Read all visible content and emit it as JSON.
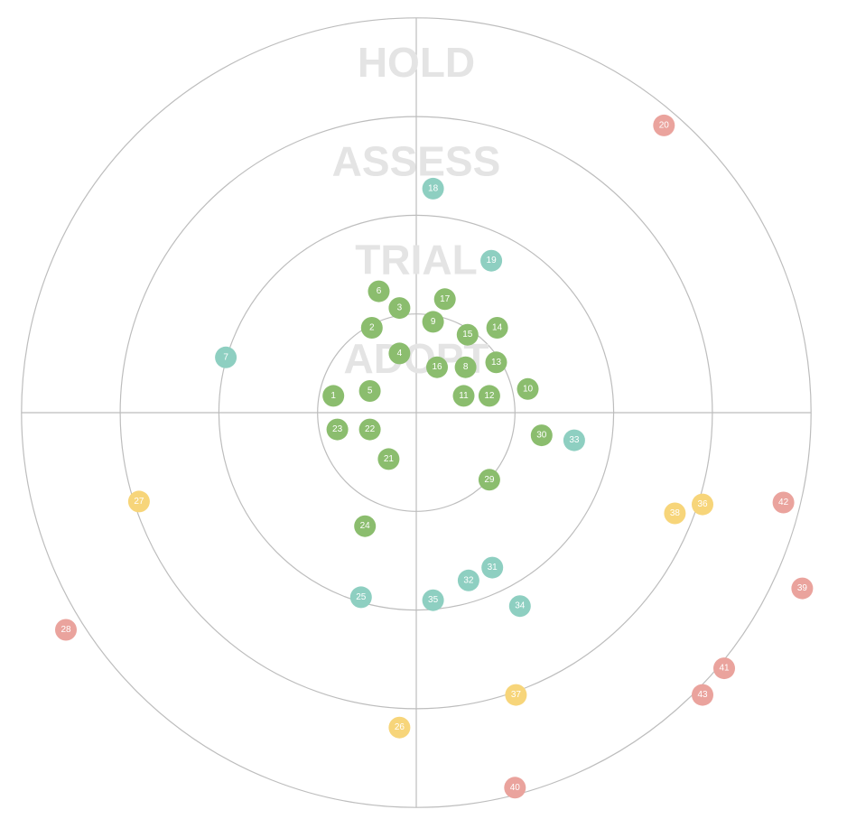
{
  "chart_data": {
    "type": "scatter",
    "title": "",
    "rings": [
      {
        "name": "ADOPT"
      },
      {
        "name": "TRIAL"
      },
      {
        "name": "ASSESS"
      },
      {
        "name": "HOLD"
      }
    ],
    "ring_max_radius": 4,
    "quadrant_colors": {
      "ADOPT": "#8bbd6e",
      "TRIAL": "#8ecfc1",
      "ASSESS": "#f7d57a",
      "HOLD": "#eaa39d"
    },
    "blips": [
      {
        "id": "1",
        "x": -0.84,
        "y": 0.17,
        "ring": "ADOPT"
      },
      {
        "id": "2",
        "x": -0.45,
        "y": 0.86,
        "ring": "ADOPT"
      },
      {
        "id": "3",
        "x": -0.17,
        "y": 1.06,
        "ring": "ADOPT"
      },
      {
        "id": "4",
        "x": -0.17,
        "y": 0.6,
        "ring": "ADOPT"
      },
      {
        "id": "5",
        "x": -0.47,
        "y": 0.22,
        "ring": "ADOPT"
      },
      {
        "id": "6",
        "x": -0.38,
        "y": 1.23,
        "ring": "ADOPT"
      },
      {
        "id": "7",
        "x": -1.93,
        "y": 0.56,
        "ring": "TRIAL"
      },
      {
        "id": "8",
        "x": 0.5,
        "y": 0.46,
        "ring": "ADOPT"
      },
      {
        "id": "9",
        "x": 0.17,
        "y": 0.92,
        "ring": "ADOPT"
      },
      {
        "id": "10",
        "x": 1.13,
        "y": 0.24,
        "ring": "ADOPT"
      },
      {
        "id": "11",
        "x": 0.48,
        "y": 0.17,
        "ring": "ADOPT"
      },
      {
        "id": "12",
        "x": 0.74,
        "y": 0.17,
        "ring": "ADOPT"
      },
      {
        "id": "13",
        "x": 0.81,
        "y": 0.51,
        "ring": "ADOPT"
      },
      {
        "id": "14",
        "x": 0.82,
        "y": 0.86,
        "ring": "ADOPT"
      },
      {
        "id": "15",
        "x": 0.52,
        "y": 0.79,
        "ring": "ADOPT"
      },
      {
        "id": "16",
        "x": 0.21,
        "y": 0.46,
        "ring": "ADOPT"
      },
      {
        "id": "17",
        "x": 0.29,
        "y": 1.15,
        "ring": "ADOPT"
      },
      {
        "id": "18",
        "x": 0.17,
        "y": 2.27,
        "ring": "TRIAL"
      },
      {
        "id": "19",
        "x": 0.76,
        "y": 1.54,
        "ring": "TRIAL"
      },
      {
        "id": "20",
        "x": 2.51,
        "y": 2.91,
        "ring": "HOLD"
      },
      {
        "id": "21",
        "x": -0.28,
        "y": -0.47,
        "ring": "ADOPT"
      },
      {
        "id": "22",
        "x": -0.47,
        "y": -0.17,
        "ring": "ADOPT"
      },
      {
        "id": "23",
        "x": -0.8,
        "y": -0.17,
        "ring": "ADOPT"
      },
      {
        "id": "24",
        "x": -0.52,
        "y": -1.15,
        "ring": "ADOPT"
      },
      {
        "id": "25",
        "x": -0.56,
        "y": -1.87,
        "ring": "TRIAL"
      },
      {
        "id": "26",
        "x": -0.17,
        "y": -3.19,
        "ring": "ASSESS"
      },
      {
        "id": "27",
        "x": -2.81,
        "y": -0.9,
        "ring": "ASSESS"
      },
      {
        "id": "28",
        "x": -3.55,
        "y": -2.2,
        "ring": "HOLD"
      },
      {
        "id": "29",
        "x": 0.74,
        "y": -0.68,
        "ring": "ADOPT"
      },
      {
        "id": "30",
        "x": 1.27,
        "y": -0.23,
        "ring": "ADOPT"
      },
      {
        "id": "31",
        "x": 0.77,
        "y": -1.57,
        "ring": "TRIAL"
      },
      {
        "id": "32",
        "x": 0.53,
        "y": -1.7,
        "ring": "TRIAL"
      },
      {
        "id": "33",
        "x": 1.6,
        "y": -0.28,
        "ring": "TRIAL"
      },
      {
        "id": "34",
        "x": 1.05,
        "y": -1.96,
        "ring": "TRIAL"
      },
      {
        "id": "35",
        "x": 0.17,
        "y": -1.9,
        "ring": "TRIAL"
      },
      {
        "id": "36",
        "x": 2.9,
        "y": -0.93,
        "ring": "ASSESS"
      },
      {
        "id": "37",
        "x": 1.01,
        "y": -2.86,
        "ring": "ASSESS"
      },
      {
        "id": "38",
        "x": 2.62,
        "y": -1.02,
        "ring": "ASSESS"
      },
      {
        "id": "39",
        "x": 3.91,
        "y": -1.78,
        "ring": "HOLD"
      },
      {
        "id": "40",
        "x": 1.0,
        "y": -3.8,
        "ring": "HOLD"
      },
      {
        "id": "41",
        "x": 3.12,
        "y": -2.59,
        "ring": "HOLD"
      },
      {
        "id": "42",
        "x": 3.72,
        "y": -0.91,
        "ring": "HOLD"
      },
      {
        "id": "43",
        "x": 2.9,
        "y": -2.86,
        "ring": "HOLD"
      }
    ]
  }
}
